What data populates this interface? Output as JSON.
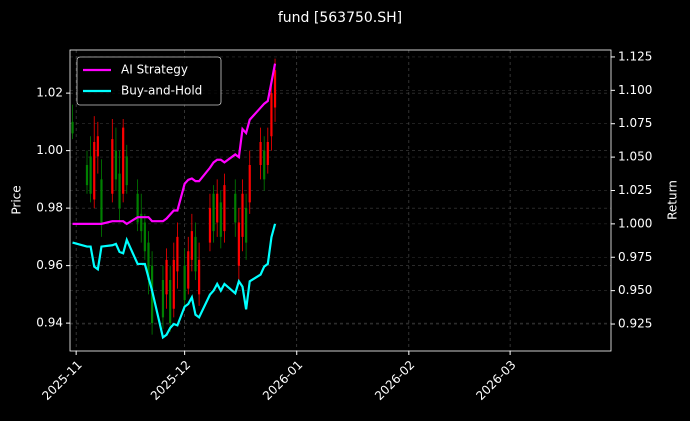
{
  "chart_data": {
    "type": "candlestick",
    "title": "fund [563750.SH]",
    "ylabel": "Price",
    "y2label": "Return",
    "x": [
      20392,
      20396,
      20397,
      20398,
      20399,
      20400,
      20403,
      20404,
      20405,
      20406,
      20407,
      20410,
      20411,
      20412,
      20413,
      20414,
      20417,
      20418,
      20419,
      20420,
      20421,
      20423,
      20424,
      20425,
      20426,
      20427,
      20430,
      20431,
      20432,
      20433,
      20434,
      20437,
      20438,
      20439,
      20440,
      20441,
      20444,
      20445,
      20446,
      20447,
      20448
    ],
    "open": [
      1.01,
      0.995,
      0.998,
      0.983,
      0.998,
      0.99,
      0.985,
      1.0,
      0.992,
      0.985,
      0.998,
      0.985,
      0.978,
      0.975,
      0.968,
      0.96,
      0.955,
      0.95,
      0.955,
      0.945,
      0.958,
      0.96,
      0.952,
      0.962,
      0.97,
      0.95,
      0.968,
      0.985,
      0.975,
      0.982,
      0.972,
      0.985,
      0.96,
      0.97,
      0.98,
      0.982,
      0.995,
      1.0,
      0.995,
      1.005,
      1.015
    ],
    "high": [
      1.016,
      1.0,
      1.005,
      1.012,
      1.01,
      0.997,
      1.011,
      1.008,
      1.0,
      1.011,
      1.002,
      0.99,
      0.985,
      0.978,
      0.972,
      0.965,
      0.96,
      0.966,
      0.96,
      0.968,
      0.975,
      0.966,
      0.97,
      0.978,
      0.975,
      0.968,
      0.985,
      0.988,
      0.99,
      0.986,
      0.992,
      0.99,
      0.98,
      0.99,
      0.985,
      1.0,
      1.008,
      1.005,
      1.008,
      1.025,
      1.032
    ],
    "low": [
      1.004,
      0.985,
      0.982,
      0.98,
      0.992,
      0.97,
      0.982,
      0.986,
      0.975,
      0.982,
      0.985,
      0.972,
      0.968,
      0.962,
      0.95,
      0.936,
      0.938,
      0.945,
      0.937,
      0.942,
      0.952,
      0.945,
      0.95,
      0.958,
      0.955,
      0.946,
      0.965,
      0.968,
      0.97,
      0.966,
      0.968,
      0.97,
      0.955,
      0.965,
      0.962,
      0.978,
      0.99,
      0.986,
      0.992,
      1.0,
      1.01
    ],
    "close": [
      1.006,
      0.988,
      0.985,
      1.003,
      1.005,
      0.975,
      1.004,
      0.99,
      0.98,
      1.008,
      0.988,
      0.975,
      0.972,
      0.965,
      0.955,
      0.94,
      0.942,
      0.962,
      0.94,
      0.962,
      0.97,
      0.948,
      0.965,
      0.972,
      0.958,
      0.962,
      0.98,
      0.972,
      0.985,
      0.97,
      0.988,
      0.975,
      0.975,
      0.985,
      0.968,
      0.995,
      1.003,
      0.99,
      1.003,
      1.02,
      1.028
    ],
    "up_color": "#ff0000",
    "down_color": "#008000",
    "series": [
      {
        "name": "AI Strategy",
        "color": "#ff00ff",
        "axis": "y2",
        "values": [
          1.0,
          1.0,
          1.0,
          1.0,
          1.0,
          1.0,
          1.002,
          1.002,
          1.002,
          1.002,
          1.0,
          1.005,
          1.005,
          1.005,
          1.005,
          1.002,
          1.002,
          1.004,
          1.007,
          1.01,
          1.01,
          1.03,
          1.033,
          1.034,
          1.032,
          1.032,
          1.042,
          1.046,
          1.048,
          1.048,
          1.046,
          1.052,
          1.05,
          1.071,
          1.068,
          1.078,
          1.087,
          1.09,
          1.092,
          1.106,
          1.12
        ]
      },
      {
        "name": "Buy-and-Hold",
        "color": "#00ffff",
        "axis": "y2",
        "values": [
          0.986,
          0.983,
          0.983,
          0.968,
          0.966,
          0.983,
          0.984,
          0.985,
          0.979,
          0.978,
          0.988,
          0.97,
          0.97,
          0.97,
          0.96,
          0.95,
          0.915,
          0.917,
          0.922,
          0.925,
          0.924,
          0.938,
          0.94,
          0.945,
          0.932,
          0.93,
          0.947,
          0.95,
          0.955,
          0.95,
          0.955,
          0.948,
          0.957,
          0.953,
          0.936,
          0.957,
          0.962,
          0.968,
          0.97,
          0.99,
          1.0
        ]
      }
    ],
    "xlim": [
      20391.3,
      20540.9
    ],
    "xticks": [
      {
        "value": 20393,
        "label": "2025-11"
      },
      {
        "value": 20423,
        "label": "2025-12"
      },
      {
        "value": 20454,
        "label": "2026-01"
      },
      {
        "value": 20485,
        "label": "2026-02"
      },
      {
        "value": 20513,
        "label": "2026-03"
      }
    ],
    "ylim": [
      0.9303,
      1.035
    ],
    "yticks": [
      0.94,
      0.96,
      0.98,
      {
        "value": 1,
        "label": "1.00"
      },
      1.02
    ],
    "y2lim": [
      0.9048,
      1.1302
    ],
    "y2ticks": [
      0.925,
      {
        "value": 0.95,
        "label": "0.950"
      },
      0.975,
      {
        "value": 1,
        "label": "1.000"
      },
      1.025,
      {
        "value": 1.05,
        "label": "1.050"
      },
      1.075,
      {
        "value": 1.1,
        "label": "1.100"
      },
      1.125
    ],
    "grid": true,
    "legend": "upper left"
  }
}
